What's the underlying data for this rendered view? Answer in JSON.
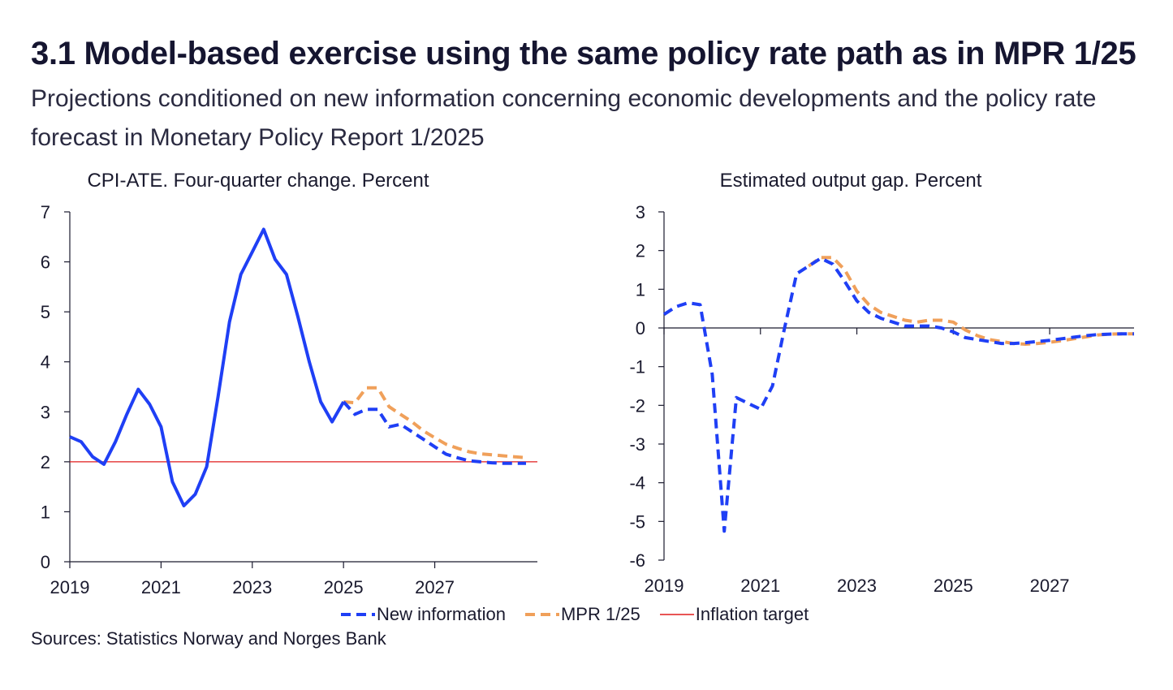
{
  "title": "3.1 Model-based exercise using the same policy rate path as in MPR 1/25",
  "subtitle": "Projections conditioned on new information concerning economic developments and the policy rate forecast in Monetary Policy Report 1/2025",
  "source": "Sources: Statistics Norway and  Norges Bank",
  "colors": {
    "new_information": "#1f3ff5",
    "mpr": "#f0a05a",
    "target": "#e11d1d",
    "axis": "#1a1a2e"
  },
  "legend": [
    {
      "key": "new_information",
      "label": "New information",
      "style": "dashed"
    },
    {
      "key": "mpr",
      "label": "MPR 1/25",
      "style": "dashed"
    },
    {
      "key": "target",
      "label": "Inflation target",
      "style": "solid"
    }
  ],
  "chart_data": [
    {
      "type": "line",
      "title": "CPI-ATE. Four-quarter change. Percent",
      "xlabel": "",
      "ylabel": "",
      "xlim": [
        2019,
        2029.25
      ],
      "ylim": [
        0,
        7
      ],
      "yticks": [
        0,
        1,
        2,
        3,
        4,
        5,
        6,
        7
      ],
      "xticks": [
        2019,
        2021,
        2023,
        2025,
        2027
      ],
      "reference_line": {
        "name": "Inflation target",
        "y": 2
      },
      "series": [
        {
          "name": "New information",
          "key": "new_information",
          "x": [
            2019.0,
            2019.25,
            2019.5,
            2019.75,
            2020.0,
            2020.25,
            2020.5,
            2020.75,
            2021.0,
            2021.25,
            2021.5,
            2021.75,
            2022.0,
            2022.25,
            2022.5,
            2022.75,
            2023.0,
            2023.25,
            2023.5,
            2023.75,
            2024.0,
            2024.25,
            2024.5,
            2024.75,
            2025.0,
            2025.25,
            2025.5,
            2025.75,
            2026.0,
            2026.25,
            2026.5,
            2026.75,
            2027.0,
            2027.25,
            2027.5,
            2027.75,
            2028.0,
            2028.25,
            2028.5,
            2028.75,
            2029.0
          ],
          "y": [
            2.5,
            2.4,
            2.1,
            1.95,
            2.4,
            2.95,
            3.45,
            3.15,
            2.7,
            1.6,
            1.12,
            1.35,
            1.9,
            3.3,
            4.8,
            5.75,
            6.2,
            6.65,
            6.05,
            5.75,
            4.9,
            4.0,
            3.2,
            2.8,
            3.2,
            2.95,
            3.05,
            3.05,
            2.7,
            2.75,
            2.6,
            2.45,
            2.3,
            2.15,
            2.08,
            2.02,
            2.0,
            1.98,
            1.97,
            1.97,
            1.97
          ],
          "solid_until": 2025.0
        },
        {
          "name": "MPR 1/25",
          "key": "mpr",
          "x": [
            2025.0,
            2025.25,
            2025.5,
            2025.75,
            2026.0,
            2026.25,
            2026.5,
            2026.75,
            2027.0,
            2027.25,
            2027.5,
            2027.75,
            2028.0,
            2028.25,
            2028.5,
            2028.75,
            2029.0
          ],
          "y": [
            3.2,
            3.18,
            3.48,
            3.48,
            3.1,
            2.95,
            2.8,
            2.62,
            2.48,
            2.35,
            2.27,
            2.2,
            2.16,
            2.14,
            2.12,
            2.1,
            2.08
          ]
        }
      ]
    },
    {
      "type": "line",
      "title": "Estimated output gap. Percent",
      "xlabel": "",
      "ylabel": "",
      "xlim": [
        2019,
        2028.75
      ],
      "ylim": [
        -6,
        3
      ],
      "yticks": [
        -6,
        -5,
        -4,
        -3,
        -2,
        -1,
        0,
        1,
        2,
        3
      ],
      "xticks": [
        2019,
        2021,
        2023,
        2025,
        2027
      ],
      "zero_line": true,
      "series": [
        {
          "name": "New information",
          "key": "new_information",
          "x": [
            2019.0,
            2019.25,
            2019.5,
            2019.75,
            2020.0,
            2020.25,
            2020.5,
            2020.75,
            2021.0,
            2021.25,
            2021.5,
            2021.75,
            2022.0,
            2022.25,
            2022.5,
            2022.75,
            2023.0,
            2023.25,
            2023.5,
            2023.75,
            2024.0,
            2024.25,
            2024.5,
            2024.75,
            2025.0,
            2025.25,
            2025.5,
            2025.75,
            2026.0,
            2026.25,
            2026.5,
            2026.75,
            2027.0,
            2027.25,
            2027.5,
            2027.75,
            2028.0,
            2028.25,
            2028.5,
            2028.75
          ],
          "y": [
            0.35,
            0.55,
            0.65,
            0.6,
            -1.2,
            -5.25,
            -1.8,
            -1.95,
            -2.1,
            -1.5,
            0.0,
            1.4,
            1.6,
            1.8,
            1.65,
            1.2,
            0.7,
            0.4,
            0.25,
            0.15,
            0.05,
            0.05,
            0.05,
            0.0,
            -0.1,
            -0.25,
            -0.3,
            -0.35,
            -0.4,
            -0.4,
            -0.38,
            -0.35,
            -0.32,
            -0.28,
            -0.24,
            -0.2,
            -0.17,
            -0.16,
            -0.15,
            -0.15
          ]
        },
        {
          "name": "MPR 1/25",
          "key": "mpr",
          "x": [
            2022.0,
            2022.25,
            2022.5,
            2022.75,
            2023.0,
            2023.25,
            2023.5,
            2023.75,
            2024.0,
            2024.25,
            2024.5,
            2024.75,
            2025.0,
            2025.25,
            2025.5,
            2025.75,
            2026.0,
            2026.25,
            2026.5,
            2026.75,
            2027.0,
            2027.25,
            2027.5,
            2027.75,
            2028.0,
            2028.25,
            2028.5,
            2028.75
          ],
          "y": [
            1.6,
            1.82,
            1.82,
            1.5,
            0.95,
            0.6,
            0.4,
            0.3,
            0.2,
            0.15,
            0.2,
            0.2,
            0.15,
            -0.05,
            -0.2,
            -0.3,
            -0.35,
            -0.4,
            -0.42,
            -0.4,
            -0.37,
            -0.33,
            -0.28,
            -0.23,
            -0.18,
            -0.16,
            -0.15,
            -0.15
          ]
        }
      ]
    }
  ]
}
